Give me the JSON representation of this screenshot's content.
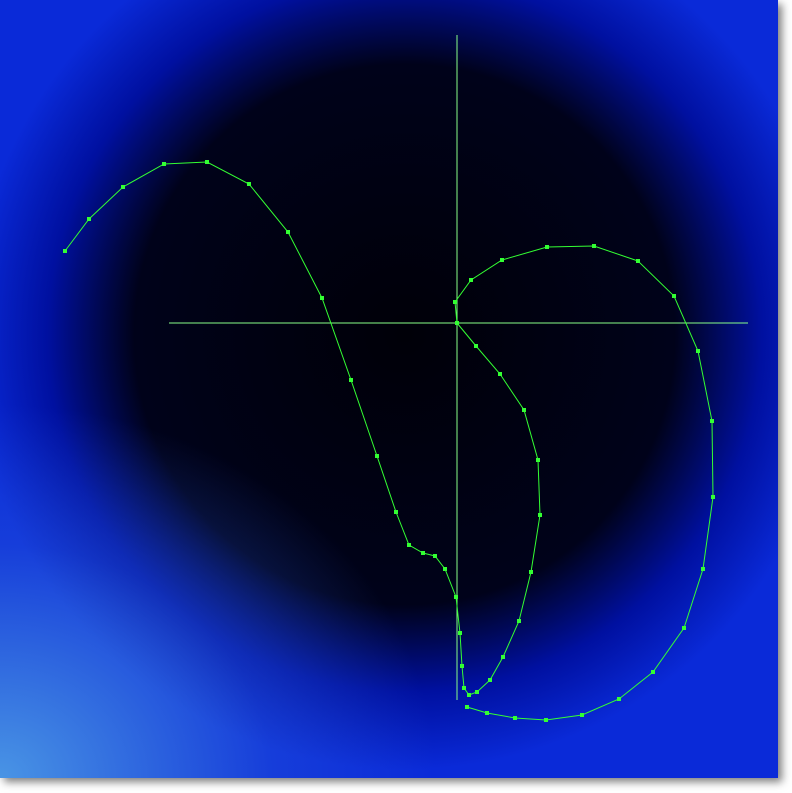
{
  "chart_data": {
    "type": "line",
    "x": [
      -3.92,
      -3.68,
      -3.34,
      -2.93,
      -2.5,
      -2.08,
      -1.69,
      -1.35,
      -1.06,
      -0.8,
      -0.61,
      -0.48,
      -0.34,
      -0.22,
      -0.12,
      -0.01,
      0.03,
      0.05,
      0.07,
      0.12,
      0.2,
      0.33,
      0.46,
      0.62,
      0.74,
      0.83,
      0.81,
      0.67,
      0.43,
      0.19,
      0,
      -0.02,
      0.14,
      0.45,
      0.9,
      1.37,
      1.81,
      2.17,
      2.41,
      2.55,
      2.56,
      2.46,
      2.27,
      1.96,
      1.62,
      1.25,
      0.89,
      0.58,
      0.3,
      0.1
    ],
    "values": [
      0.72,
      1.04,
      1.36,
      1.59,
      1.61,
      1.39,
      0.91,
      0.25,
      -0.57,
      -1.33,
      -1.89,
      -2.22,
      -2.3,
      -2.33,
      -2.46,
      -2.74,
      -3.1,
      -3.43,
      -3.65,
      -3.72,
      -3.69,
      -3.57,
      -3.34,
      -2.98,
      -2.49,
      -1.92,
      -1.37,
      -0.87,
      -0.51,
      -0.23,
      0,
      0.21,
      0.43,
      0.63,
      0.76,
      0.77,
      0.62,
      0.27,
      -0.28,
      -0.98,
      -1.74,
      -2.46,
      -3.05,
      -3.49,
      -3.76,
      -3.92,
      -3.97,
      -3.95,
      -3.9,
      -3.84
    ],
    "color": "#33ff33",
    "axis_color": "#88ff88",
    "xlim": [
      -4.57,
      3.21
    ],
    "ylim": [
      -4.55,
      3.23
    ]
  }
}
